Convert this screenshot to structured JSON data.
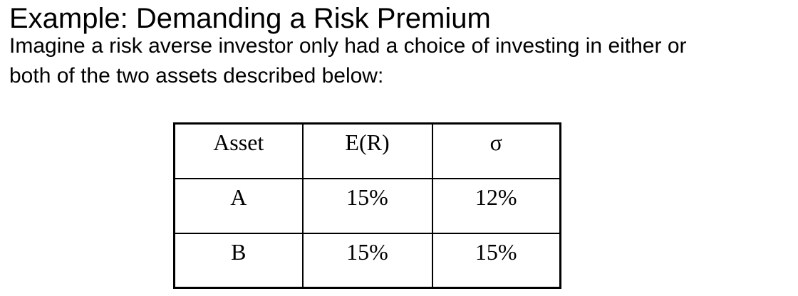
{
  "slide": {
    "title": "Example: Demanding a Risk Premium",
    "intro_lines": [
      "Imagine a risk averse investor only had a choice of investing in either or",
      "both of the two assets described below:"
    ]
  },
  "table": {
    "headers": [
      "Asset",
      "E(R)",
      "σ"
    ],
    "rows": [
      [
        "A",
        "15%",
        "12%"
      ],
      [
        "B",
        "15%",
        "15%"
      ]
    ]
  },
  "colors": {
    "text": "#000000",
    "background": "#ffffff",
    "table_border": "#000000"
  }
}
